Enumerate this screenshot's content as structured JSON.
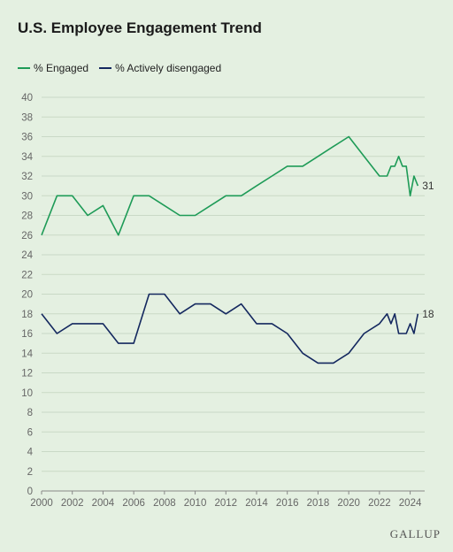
{
  "title": "U.S. Employee Engagement Trend",
  "brand": "GALLUP",
  "colors": {
    "engaged": "#1e9b57",
    "disengaged": "#14285f",
    "grid": "#c9d9c6",
    "axis_text": "#666666",
    "background": "#e4f0e1"
  },
  "chart_data": {
    "type": "line",
    "title": "U.S. Employee Engagement Trend",
    "xlabel": "",
    "ylabel": "",
    "xlim": [
      2000,
      2024.6
    ],
    "ylim": [
      0,
      40
    ],
    "x_ticks": [
      2000,
      2002,
      2004,
      2006,
      2008,
      2010,
      2012,
      2014,
      2016,
      2018,
      2020,
      2022,
      2024
    ],
    "y_ticks": [
      0,
      2,
      4,
      6,
      8,
      10,
      12,
      14,
      16,
      18,
      20,
      22,
      24,
      26,
      28,
      30,
      32,
      34,
      36,
      38,
      40
    ],
    "grid": "horizontal",
    "legend_position": "top-left",
    "series": [
      {
        "name": "% Engaged",
        "end_label": "31",
        "x": [
          2000,
          2001,
          2002,
          2003,
          2004,
          2005,
          2006,
          2007,
          2008,
          2009,
          2010,
          2011,
          2012,
          2013,
          2014,
          2015,
          2016,
          2017,
          2018,
          2019,
          2020,
          2021,
          2022,
          2022.5,
          2022.75,
          2023,
          2023.25,
          2023.5,
          2023.75,
          2024,
          2024.25,
          2024.5
        ],
        "values": [
          26,
          30,
          30,
          28,
          29,
          26,
          30,
          30,
          29,
          28,
          28,
          29,
          30,
          30,
          31,
          32,
          33,
          33,
          34,
          35,
          36,
          34,
          32,
          32,
          33,
          33,
          34,
          33,
          33,
          30,
          32,
          31
        ]
      },
      {
        "name": "% Actively disengaged",
        "end_label": "18",
        "x": [
          2000,
          2001,
          2002,
          2003,
          2004,
          2005,
          2006,
          2007,
          2008,
          2009,
          2010,
          2011,
          2012,
          2013,
          2014,
          2015,
          2016,
          2017,
          2018,
          2019,
          2020,
          2021,
          2022,
          2022.5,
          2022.75,
          2023,
          2023.25,
          2023.5,
          2023.75,
          2024,
          2024.25,
          2024.5
        ],
        "values": [
          18,
          16,
          17,
          17,
          17,
          15,
          15,
          20,
          20,
          18,
          19,
          19,
          18,
          19,
          17,
          17,
          16,
          14,
          13,
          13,
          14,
          16,
          17,
          18,
          17,
          18,
          16,
          16,
          16,
          17,
          16,
          18
        ]
      }
    ]
  }
}
